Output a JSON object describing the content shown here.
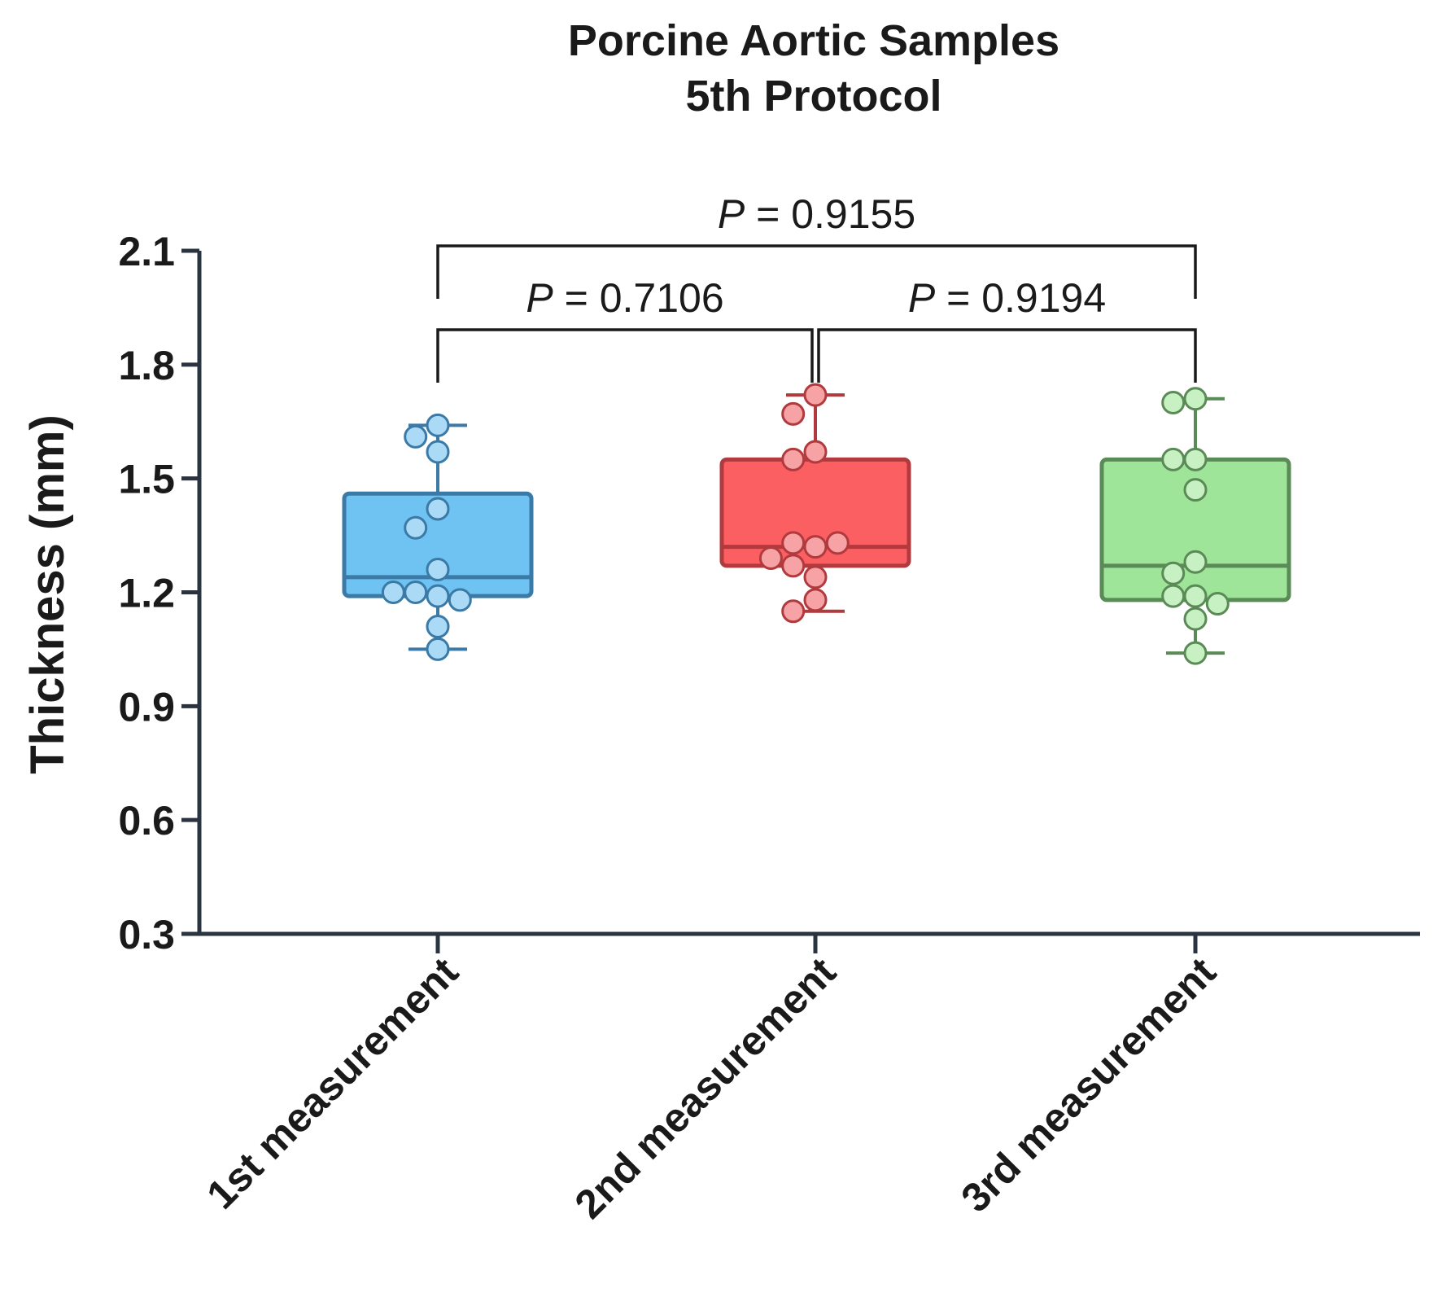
{
  "chart_data": {
    "type": "box",
    "title_lines": [
      "Porcine Aortic Samples",
      "5th Protocol"
    ],
    "ylabel": "Thickness (mm)",
    "xlabel": "",
    "ylim": [
      0.3,
      2.1
    ],
    "yticks": [
      "0.3",
      "0.6",
      "0.9",
      "1.2",
      "1.5",
      "1.8",
      "2.1"
    ],
    "grid": false,
    "categories": [
      "1st measurement",
      "2nd measurement",
      "3rd measurement"
    ],
    "groups": [
      {
        "category": "1st measurement",
        "color": "#6ec3f2",
        "edge_color": "#3b7aa6",
        "point_color": "#aadaf6",
        "whisker_low": 1.05,
        "q1": 1.19,
        "median": 1.24,
        "q3": 1.46,
        "whisker_high": 1.64,
        "points": [
          1.64,
          1.61,
          1.57,
          1.42,
          1.37,
          1.26,
          1.19,
          1.2,
          1.18,
          1.2,
          1.11,
          1.05
        ]
      },
      {
        "category": "2nd measurement",
        "color": "#fb5f62",
        "edge_color": "#b03a3d",
        "point_color": "#f7a3a5",
        "whisker_low": 1.15,
        "q1": 1.27,
        "median": 1.32,
        "q3": 1.55,
        "whisker_high": 1.72,
        "points": [
          1.72,
          1.67,
          1.57,
          1.55,
          1.32,
          1.33,
          1.33,
          1.27,
          1.29,
          1.24,
          1.18,
          1.15
        ]
      },
      {
        "category": "3rd measurement",
        "color": "#9ee599",
        "edge_color": "#5a8a55",
        "point_color": "#c7f0c3",
        "whisker_low": 1.04,
        "q1": 1.18,
        "median": 1.27,
        "q3": 1.55,
        "whisker_high": 1.71,
        "points": [
          1.71,
          1.7,
          1.55,
          1.55,
          1.47,
          1.28,
          1.25,
          1.19,
          1.19,
          1.17,
          1.13,
          1.04
        ]
      }
    ],
    "comparisons": [
      {
        "from": 0,
        "to": 2,
        "level": 2,
        "label_p": "P",
        "label_value": "= 0.9155"
      },
      {
        "from": 0,
        "to": 1,
        "level": 1,
        "label_p": "P",
        "label_value": "= 0.7106"
      },
      {
        "from": 1,
        "to": 2,
        "level": 1,
        "label_p": "P",
        "label_value": "= 0.9194"
      }
    ]
  }
}
